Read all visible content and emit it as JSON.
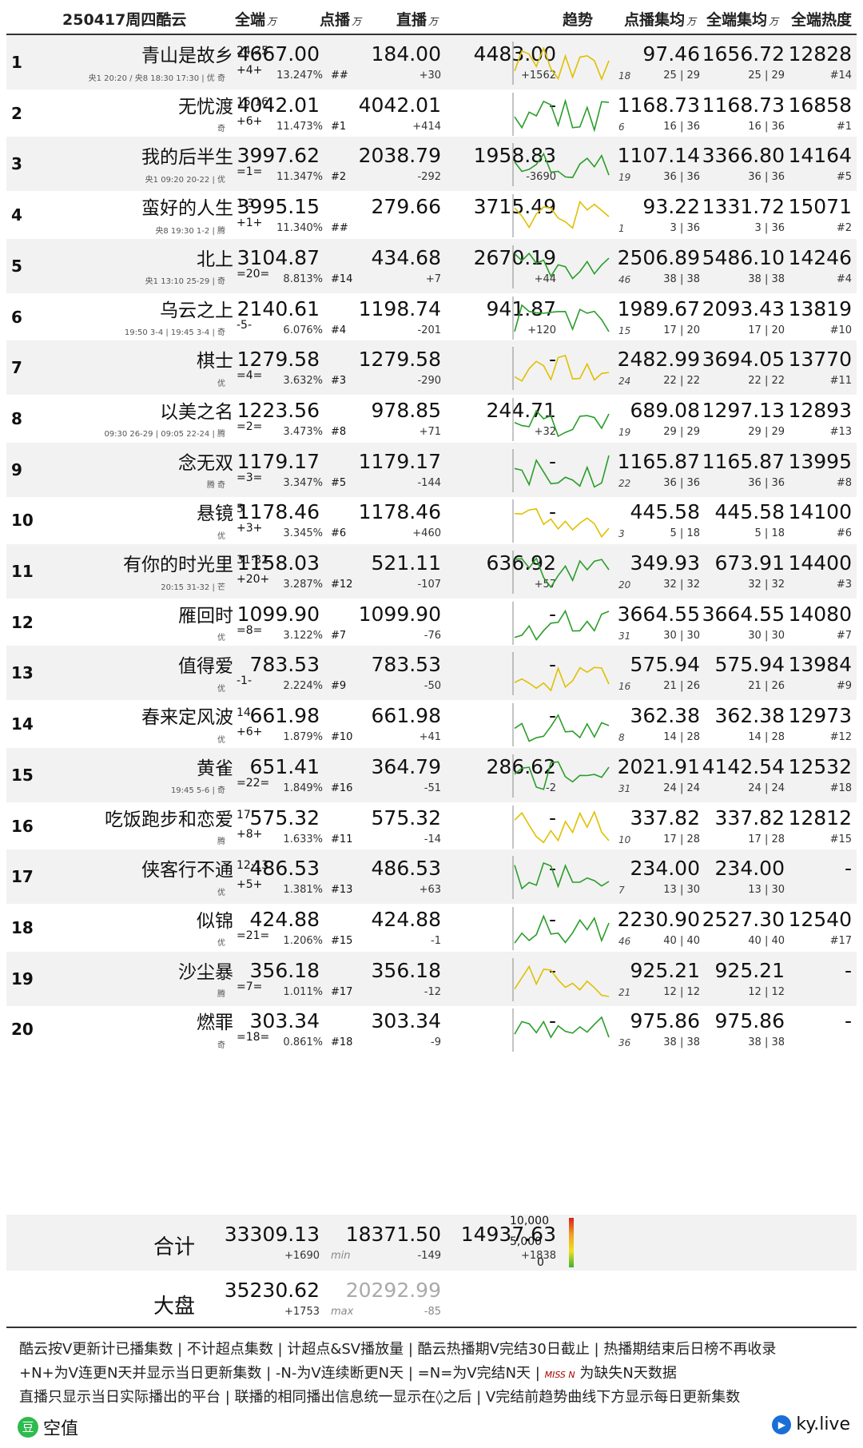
{
  "header": {
    "date_title": "250417周四酷云",
    "col_total": "全端",
    "col_vod": "点播",
    "col_live": "直播",
    "col_trend": "趋势",
    "col_vod_avg": "点播集均",
    "col_total_avg": "全端集均",
    "col_heat": "全端热度",
    "unit": "万"
  },
  "rows": [
    {
      "rank": "1",
      "title": "青山是故乡",
      "eps": "24·25",
      "trend": "+4+",
      "total": "4667.00",
      "pct": "13.247%",
      "srank": "##",
      "vod": "184.00",
      "vod_d": "+30",
      "live": "4483.00",
      "live_d": "+1562",
      "chart_n": "18",
      "avg1": "97.46",
      "avg1s": "25 | 29",
      "avg2": "1656.72",
      "avg2s": "25 | 29",
      "heat": "12828",
      "heat_r": "#14",
      "plat": "央1 20:20 / 央8 18:30 17:30 | 优 奇"
    },
    {
      "rank": "2",
      "title": "无忧渡",
      "eps": "15·16",
      "trend": "+6+",
      "total": "4042.01",
      "pct": "11.473%",
      "srank": "#1",
      "vod": "4042.01",
      "vod_d": "+414",
      "live": "-",
      "live_d": "",
      "chart_n": "6",
      "avg1": "1168.73",
      "avg1s": "16 | 36",
      "avg2": "1168.73",
      "avg2s": "16 | 36",
      "heat": "16858",
      "heat_r": "#1",
      "plat": "奇"
    },
    {
      "rank": "3",
      "title": "我的后半生",
      "eps": "",
      "trend": "=1=",
      "total": "3997.62",
      "pct": "11.347%",
      "srank": "#2",
      "vod": "2038.79",
      "vod_d": "-292",
      "live": "1958.83",
      "live_d": "-3690",
      "chart_n": "19",
      "avg1": "1107.14",
      "avg1s": "36 | 36",
      "avg2": "3366.80",
      "avg2s": "36 | 36",
      "heat": "14164",
      "heat_r": "#5",
      "plat": "央1 09:20 20-22 | 优"
    },
    {
      "rank": "4",
      "title": "蛮好的人生",
      "eps": "1·3",
      "trend": "+1+",
      "total": "3995.15",
      "pct": "11.340%",
      "srank": "##",
      "vod": "279.66",
      "vod_d": "",
      "live": "3715.49",
      "live_d": "",
      "chart_n": "1",
      "avg1": "93.22",
      "avg1s": "3 | 36",
      "avg2": "1331.72",
      "avg2s": "3 | 36",
      "heat": "15071",
      "heat_r": "#2",
      "plat": "央8 19:30 1-2 | 腾"
    },
    {
      "rank": "5",
      "title": "北上",
      "eps": "",
      "trend": "=20=",
      "total": "3104.87",
      "pct": "8.813%",
      "srank": "#14",
      "vod": "434.68",
      "vod_d": "+7",
      "live": "2670.19",
      "live_d": "+44",
      "chart_n": "46",
      "avg1": "2506.89",
      "avg1s": "38 | 38",
      "avg2": "5486.10",
      "avg2s": "38 | 38",
      "heat": "14246",
      "heat_r": "#4",
      "plat": "央1 13:10 25-29 | 奇"
    },
    {
      "rank": "6",
      "title": "乌云之上",
      "eps": "",
      "trend": "-5-",
      "total": "2140.61",
      "pct": "6.076%",
      "srank": "#4",
      "vod": "1198.74",
      "vod_d": "-201",
      "live": "941.87",
      "live_d": "+120",
      "chart_n": "15",
      "avg1": "1989.67",
      "avg1s": "17 | 20",
      "avg2": "2093.43",
      "avg2s": "17 | 20",
      "heat": "13819",
      "heat_r": "#10",
      "plat": "19:50 3-4 | 19:45 3-4 | 奇"
    },
    {
      "rank": "7",
      "title": "棋士",
      "eps": "",
      "trend": "=4=",
      "total": "1279.58",
      "pct": "3.632%",
      "srank": "#3",
      "vod": "1279.58",
      "vod_d": "-290",
      "live": "-",
      "live_d": "",
      "chart_n": "24",
      "avg1": "2482.99",
      "avg1s": "22 | 22",
      "avg2": "3694.05",
      "avg2s": "22 | 22",
      "heat": "13770",
      "heat_r": "#11",
      "plat": "优"
    },
    {
      "rank": "8",
      "title": "以美之名",
      "eps": "",
      "trend": "=2=",
      "total": "1223.56",
      "pct": "3.473%",
      "srank": "#8",
      "vod": "978.85",
      "vod_d": "+71",
      "live": "244.71",
      "live_d": "+32",
      "chart_n": "19",
      "avg1": "689.08",
      "avg1s": "29 | 29",
      "avg2": "1297.13",
      "avg2s": "29 | 29",
      "heat": "12893",
      "heat_r": "#13",
      "plat": "09:30 26-29 | 09:05 22-24 | 腾"
    },
    {
      "rank": "9",
      "title": "念无双",
      "eps": "",
      "trend": "=3=",
      "total": "1179.17",
      "pct": "3.347%",
      "srank": "#5",
      "vod": "1179.17",
      "vod_d": "-144",
      "live": "-",
      "live_d": "",
      "chart_n": "22",
      "avg1": "1165.87",
      "avg1s": "36 | 36",
      "avg2": "1165.87",
      "avg2s": "36 | 36",
      "heat": "13995",
      "heat_r": "#8",
      "plat": "腾 奇"
    },
    {
      "rank": "10",
      "title": "悬镜",
      "eps": "5",
      "trend": "+3+",
      "total": "1178.46",
      "pct": "3.345%",
      "srank": "#6",
      "vod": "1178.46",
      "vod_d": "+460",
      "live": "-",
      "live_d": "",
      "chart_n": "3",
      "avg1": "445.58",
      "avg1s": "5 | 18",
      "avg2": "445.58",
      "avg2s": "5 | 18",
      "heat": "14100",
      "heat_r": "#6",
      "plat": "优"
    },
    {
      "rank": "11",
      "title": "有你的时光里",
      "eps": "31·32",
      "trend": "+20+",
      "total": "1158.03",
      "pct": "3.287%",
      "srank": "#12",
      "vod": "521.11",
      "vod_d": "-107",
      "live": "636.92",
      "live_d": "+57",
      "chart_n": "20",
      "avg1": "349.93",
      "avg1s": "32 | 32",
      "avg2": "673.91",
      "avg2s": "32 | 32",
      "heat": "14400",
      "heat_r": "#3",
      "plat": "20:15 31-32 | 芒"
    },
    {
      "rank": "12",
      "title": "雁回时",
      "eps": "",
      "trend": "=8=",
      "total": "1099.90",
      "pct": "3.122%",
      "srank": "#7",
      "vod": "1099.90",
      "vod_d": "-76",
      "live": "-",
      "live_d": "",
      "chart_n": "31",
      "avg1": "3664.55",
      "avg1s": "30 | 30",
      "avg2": "3664.55",
      "avg2s": "30 | 30",
      "heat": "14080",
      "heat_r": "#7",
      "plat": "优"
    },
    {
      "rank": "13",
      "title": "值得爱",
      "eps": "",
      "trend": "-1-",
      "total": "783.53",
      "pct": "2.224%",
      "srank": "#9",
      "vod": "783.53",
      "vod_d": "-50",
      "live": "-",
      "live_d": "",
      "chart_n": "16",
      "avg1": "575.94",
      "avg1s": "21 | 26",
      "avg2": "575.94",
      "avg2s": "21 | 26",
      "heat": "13984",
      "heat_r": "#9",
      "plat": "优"
    },
    {
      "rank": "14",
      "title": "春来定风波",
      "eps": "14",
      "trend": "+6+",
      "total": "661.98",
      "pct": "1.879%",
      "srank": "#10",
      "vod": "661.98",
      "vod_d": "+41",
      "live": "-",
      "live_d": "",
      "chart_n": "8",
      "avg1": "362.38",
      "avg1s": "14 | 28",
      "avg2": "362.38",
      "avg2s": "14 | 28",
      "heat": "12973",
      "heat_r": "#12",
      "plat": "优"
    },
    {
      "rank": "15",
      "title": "黄雀",
      "eps": "",
      "trend": "=22=",
      "total": "651.41",
      "pct": "1.849%",
      "srank": "#16",
      "vod": "364.79",
      "vod_d": "-51",
      "live": "286.62",
      "live_d": "-2",
      "chart_n": "31",
      "avg1": "2021.91",
      "avg1s": "24 | 24",
      "avg2": "4142.54",
      "avg2s": "24 | 24",
      "heat": "12532",
      "heat_r": "#18",
      "plat": "19:45 5-6 | 奇"
    },
    {
      "rank": "16",
      "title": "吃饭跑步和恋爱",
      "eps": "17",
      "trend": "+8+",
      "total": "575.32",
      "pct": "1.633%",
      "srank": "#11",
      "vod": "575.32",
      "vod_d": "-14",
      "live": "-",
      "live_d": "",
      "chart_n": "10",
      "avg1": "337.82",
      "avg1s": "17 | 28",
      "avg2": "337.82",
      "avg2s": "17 | 28",
      "heat": "12812",
      "heat_r": "#15",
      "plat": "腾"
    },
    {
      "rank": "17",
      "title": "侠客行不通",
      "eps": "12·13",
      "trend": "+5+",
      "total": "486.53",
      "pct": "1.381%",
      "srank": "#13",
      "vod": "486.53",
      "vod_d": "+63",
      "live": "-",
      "live_d": "",
      "chart_n": "7",
      "avg1": "234.00",
      "avg1s": "13 | 30",
      "avg2": "234.00",
      "avg2s": "13 | 30",
      "heat": "-",
      "heat_r": "",
      "plat": "优"
    },
    {
      "rank": "18",
      "title": "似锦",
      "eps": "",
      "trend": "=21=",
      "total": "424.88",
      "pct": "1.206%",
      "srank": "#15",
      "vod": "424.88",
      "vod_d": "-1",
      "live": "-",
      "live_d": "",
      "chart_n": "46",
      "avg1": "2230.90",
      "avg1s": "40 | 40",
      "avg2": "2527.30",
      "avg2s": "40 | 40",
      "heat": "12540",
      "heat_r": "#17",
      "plat": "优"
    },
    {
      "rank": "19",
      "title": "沙尘暴",
      "eps": "",
      "trend": "=7=",
      "total": "356.18",
      "pct": "1.011%",
      "srank": "#17",
      "vod": "356.18",
      "vod_d": "-12",
      "live": "-",
      "live_d": "",
      "chart_n": "21",
      "avg1": "925.21",
      "avg1s": "12 | 12",
      "avg2": "925.21",
      "avg2s": "12 | 12",
      "heat": "-",
      "heat_r": "",
      "plat": "腾"
    },
    {
      "rank": "20",
      "title": "燃罪",
      "eps": "",
      "trend": "=18=",
      "total": "303.34",
      "pct": "0.861%",
      "srank": "#18",
      "vod": "303.34",
      "vod_d": "-9",
      "live": "-",
      "live_d": "",
      "chart_n": "36",
      "avg1": "975.86",
      "avg1s": "38 | 38",
      "avg2": "975.86",
      "avg2s": "38 | 38",
      "heat": "-",
      "heat_r": "",
      "plat": "奇"
    }
  ],
  "summary": {
    "label": "合计",
    "total": "33309.13",
    "total_d": "+1690",
    "vod": "18371.50",
    "vod_min": "min",
    "vod_d": "-149",
    "live": "14937.63",
    "live_d": "+1838"
  },
  "market": {
    "label": "大盘",
    "total": "35230.62",
    "total_d": "+1753",
    "vod": "20292.99",
    "vod_max": "max",
    "vod_d": "-85"
  },
  "legend": {
    "top": "10,000",
    "mid": "5,000",
    "low": "0"
  },
  "footer": {
    "line1": "酷云按V更新计已播集数 | 不计超点集数 | 计超点&SV播放量 | 酷云热播期V完结30日截止 | 热播期结束后日榜不再收录",
    "line2a": "+N+为V连更N天并显示当日更新集数 | -N-为V连续断更N天 | =N=为V完结N天 |",
    "line2miss": "MISS N",
    "line2b": "为缺失N天数据",
    "line3": "直播只显示当日实际播出的平台 | 联播的相同播出信息统一显示在◊之后 | V完结前趋势曲线下方显示每日更新集数",
    "brand_left": "空值",
    "brand_right": "ky.live"
  },
  "colors": {
    "shade": "#f2f2f2",
    "trend_green": "#2a9d2a",
    "trend_yellow": "#e0c000",
    "trend_red": "#d03a1a",
    "iqiyi": "#2fb83a",
    "youku": "#1fb6ff"
  }
}
